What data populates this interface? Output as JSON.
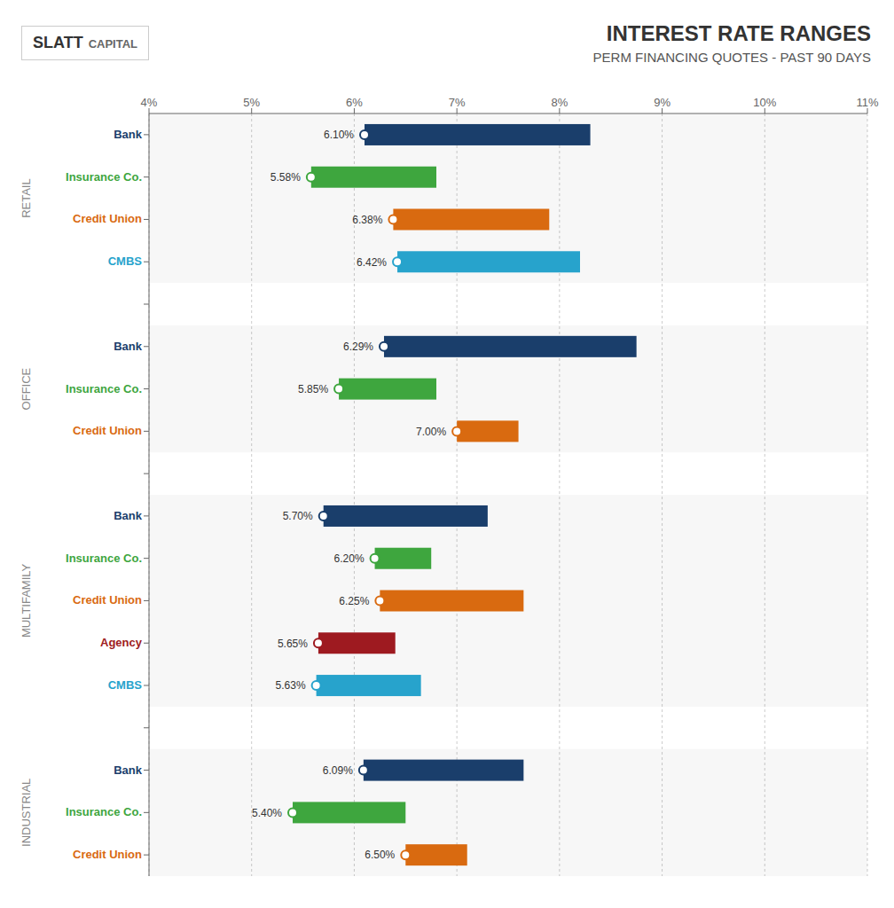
{
  "chart_data": {
    "type": "bar",
    "orientation": "horizontal",
    "title": "INTEREST RATE RANGES",
    "subtitle": "PERM FINANCING QUOTES - PAST 90 DAYS",
    "annotations": [
      "SLATT",
      "CAPITAL"
    ],
    "groups": [
      {
        "name": "RETAIL",
        "categories": [
          "Bank",
          "Insurance Co.",
          "Credit Union",
          "CMBS"
        ],
        "lowest": [
          6.1,
          5.58,
          6.38,
          6.42
        ],
        "high": [
          8.3,
          6.8,
          7.9,
          8.2
        ],
        "colors": [
          "#1a3e6b",
          "#3ea63e",
          "#d96a10",
          "#27a3cc"
        ],
        "value_labels": [
          "6.10%",
          "5.58%",
          "6.38%",
          "6.42%"
        ]
      },
      {
        "name": "OFFICE",
        "categories": [
          "Bank",
          "Insurance Co.",
          "Credit Union"
        ],
        "lowest": [
          6.29,
          5.85,
          7.0
        ],
        "high": [
          8.75,
          6.8,
          7.6
        ],
        "colors": [
          "#1a3e6b",
          "#3ea63e",
          "#d96a10"
        ],
        "value_labels": [
          "6.29%",
          "5.85%",
          "7.00%"
        ]
      },
      {
        "name": "MULTIFAMILY",
        "categories": [
          "Bank",
          "Insurance Co.",
          "Credit Union",
          "Agency",
          "CMBS"
        ],
        "lowest": [
          5.7,
          6.2,
          6.25,
          5.65,
          5.63
        ],
        "high": [
          7.3,
          6.75,
          7.65,
          6.4,
          6.65
        ],
        "colors": [
          "#1a3e6b",
          "#3ea63e",
          "#d96a10",
          "#9e1a20",
          "#27a3cc"
        ],
        "value_labels": [
          "5.70%",
          "6.20%",
          "6.25%",
          "5.65%",
          "5.63%"
        ]
      },
      {
        "name": "INDUSTRIAL",
        "categories": [
          "Bank",
          "Insurance Co.",
          "Credit Union"
        ],
        "lowest": [
          6.09,
          5.4,
          6.5
        ],
        "high": [
          7.65,
          6.5,
          7.1
        ],
        "colors": [
          "#1a3e6b",
          "#3ea63e",
          "#d96a10"
        ],
        "value_labels": [
          "6.09%",
          "5.40%",
          "6.50%"
        ]
      }
    ],
    "xlim": [
      4,
      11
    ],
    "xticks": [
      {
        "value": 4,
        "label": "4%"
      },
      {
        "value": 5,
        "label": "5%"
      },
      {
        "value": 6,
        "label": "6%"
      },
      {
        "value": 7,
        "label": "7%"
      },
      {
        "value": 8,
        "label": "8%"
      },
      {
        "value": 9,
        "label": "9%"
      },
      {
        "value": 10,
        "label": "10%"
      },
      {
        "value": 11,
        "label": "11%"
      }
    ],
    "grid": true,
    "data_labels": true
  }
}
